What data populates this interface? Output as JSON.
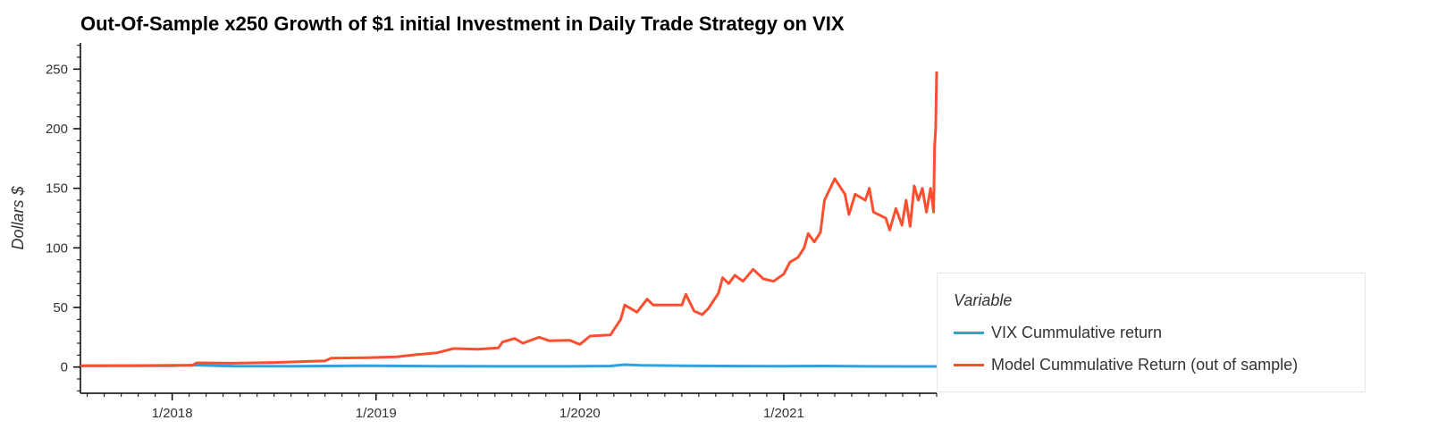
{
  "chart_data": {
    "type": "line",
    "title": "Out-Of-Sample x250 Growth of $1 initial Investment in Daily Trade Strategy on VIX",
    "xlabel": "",
    "ylabel": "Dollars $",
    "x_ticks": [
      "1/2018",
      "1/2019",
      "1/2020",
      "1/2021"
    ],
    "y_ticks": [
      0,
      50,
      100,
      150,
      200,
      250
    ],
    "xlim": [
      2017.55,
      2021.75
    ],
    "ylim": [
      -22,
      272
    ],
    "grid": false,
    "legend_title": "Variable",
    "legend_position": "right",
    "series": [
      {
        "name": "VIX Cummulative return",
        "color": "#30a2da",
        "points": [
          [
            2017.55,
            1.0
          ],
          [
            2018.0,
            1.0
          ],
          [
            2018.1,
            1.6
          ],
          [
            2018.3,
            0.8
          ],
          [
            2018.6,
            0.7
          ],
          [
            2018.9,
            1.0
          ],
          [
            2019.0,
            1.0
          ],
          [
            2019.3,
            0.7
          ],
          [
            2019.6,
            0.6
          ],
          [
            2019.9,
            0.6
          ],
          [
            2020.15,
            0.9
          ],
          [
            2020.22,
            2.0
          ],
          [
            2020.3,
            1.4
          ],
          [
            2020.5,
            1.0
          ],
          [
            2020.8,
            0.8
          ],
          [
            2021.0,
            0.7
          ],
          [
            2021.2,
            0.9
          ],
          [
            2021.4,
            0.6
          ],
          [
            2021.6,
            0.5
          ],
          [
            2021.75,
            0.5
          ]
        ]
      },
      {
        "name": "Model Cummulative Return (out of sample)",
        "color": "#fc4f30",
        "points": [
          [
            2017.55,
            1.0
          ],
          [
            2017.8,
            1.2
          ],
          [
            2018.0,
            1.4
          ],
          [
            2018.1,
            1.5
          ],
          [
            2018.12,
            3.5
          ],
          [
            2018.3,
            3.2
          ],
          [
            2018.5,
            3.8
          ],
          [
            2018.75,
            5.2
          ],
          [
            2018.78,
            7.5
          ],
          [
            2018.95,
            7.8
          ],
          [
            2019.1,
            8.5
          ],
          [
            2019.2,
            10.5
          ],
          [
            2019.3,
            12.0
          ],
          [
            2019.38,
            15.5
          ],
          [
            2019.5,
            15.0
          ],
          [
            2019.6,
            16.0
          ],
          [
            2019.62,
            21.0
          ],
          [
            2019.68,
            24.0
          ],
          [
            2019.72,
            20.0
          ],
          [
            2019.8,
            25.0
          ],
          [
            2019.85,
            22.0
          ],
          [
            2019.95,
            22.5
          ],
          [
            2020.0,
            19.0
          ],
          [
            2020.05,
            26.0
          ],
          [
            2020.15,
            27.0
          ],
          [
            2020.2,
            40.0
          ],
          [
            2020.22,
            52.0
          ],
          [
            2020.28,
            46.0
          ],
          [
            2020.33,
            57.0
          ],
          [
            2020.36,
            52.0
          ],
          [
            2020.5,
            52.0
          ],
          [
            2020.52,
            61.0
          ],
          [
            2020.56,
            47.0
          ],
          [
            2020.6,
            44.0
          ],
          [
            2020.63,
            49.0
          ],
          [
            2020.68,
            62.0
          ],
          [
            2020.7,
            75.0
          ],
          [
            2020.73,
            70.0
          ],
          [
            2020.76,
            77.0
          ],
          [
            2020.8,
            72.0
          ],
          [
            2020.85,
            82.0
          ],
          [
            2020.9,
            74.0
          ],
          [
            2020.95,
            72.0
          ],
          [
            2021.0,
            78.0
          ],
          [
            2021.03,
            88.0
          ],
          [
            2021.07,
            92.0
          ],
          [
            2021.1,
            100.0
          ],
          [
            2021.12,
            112.0
          ],
          [
            2021.15,
            105.0
          ],
          [
            2021.18,
            113.0
          ],
          [
            2021.2,
            140.0
          ],
          [
            2021.25,
            158.0
          ],
          [
            2021.3,
            145.0
          ],
          [
            2021.32,
            128.0
          ],
          [
            2021.35,
            145.0
          ],
          [
            2021.4,
            140.0
          ],
          [
            2021.42,
            150.0
          ],
          [
            2021.44,
            130.0
          ],
          [
            2021.5,
            125.0
          ],
          [
            2021.52,
            115.0
          ],
          [
            2021.55,
            133.0
          ],
          [
            2021.58,
            119.0
          ],
          [
            2021.6,
            140.0
          ],
          [
            2021.62,
            118.0
          ],
          [
            2021.64,
            152.0
          ],
          [
            2021.66,
            140.0
          ],
          [
            2021.68,
            150.0
          ],
          [
            2021.7,
            130.0
          ],
          [
            2021.72,
            150.0
          ],
          [
            2021.735,
            130.0
          ],
          [
            2021.74,
            185.0
          ],
          [
            2021.745,
            200.0
          ],
          [
            2021.75,
            248.0
          ]
        ]
      }
    ]
  }
}
